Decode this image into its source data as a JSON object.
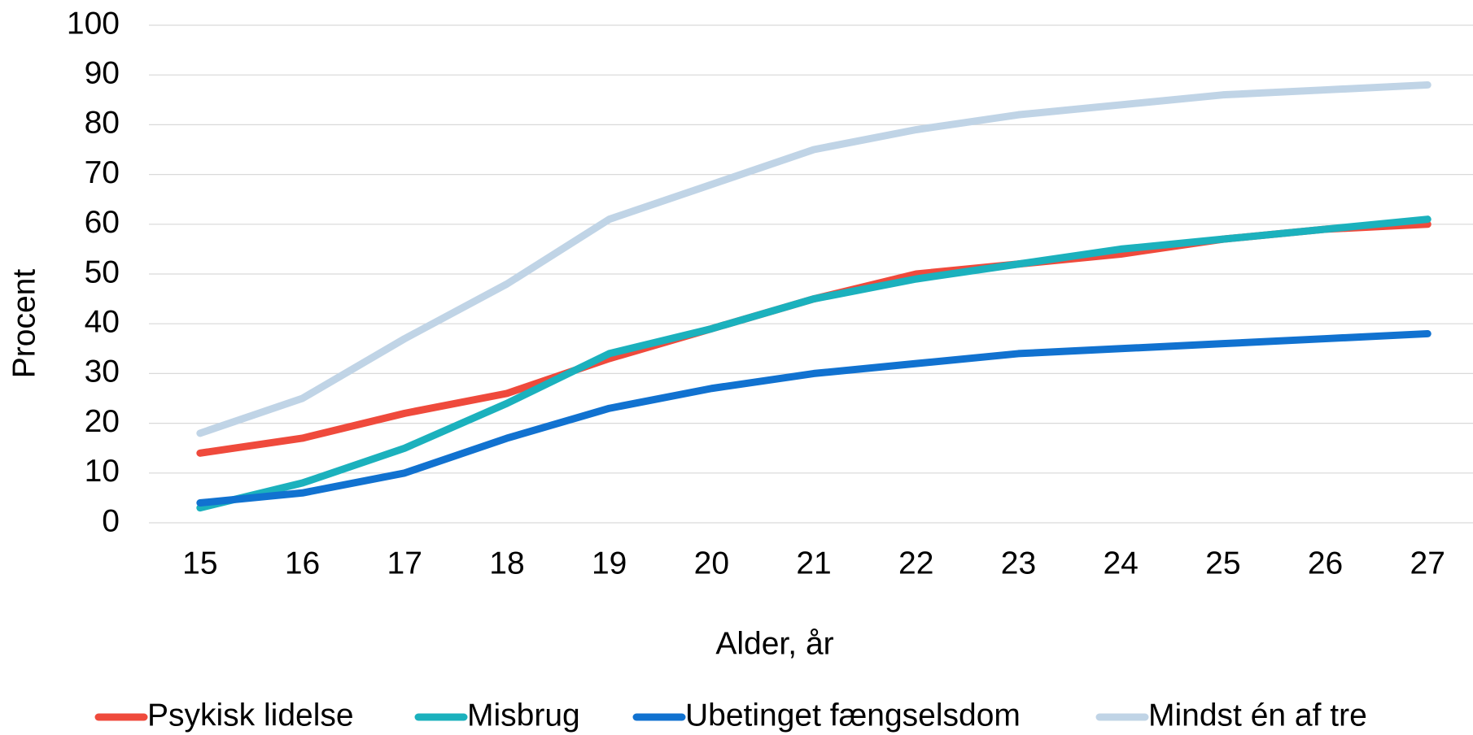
{
  "chart_data": {
    "type": "line",
    "x_label": "Alder, år",
    "y_label": "Procent",
    "categories": [
      "15",
      "16",
      "17",
      "18",
      "19",
      "20",
      "21",
      "22",
      "23",
      "24",
      "25",
      "26",
      "27"
    ],
    "series": [
      {
        "name": "Psykisk lidelse",
        "color": "#ef4a3c",
        "values": [
          14,
          17,
          22,
          26,
          33,
          39,
          45,
          50,
          52,
          54,
          57,
          59,
          60
        ]
      },
      {
        "name": "Misbrug",
        "color": "#1bb1bd",
        "values": [
          3,
          8,
          15,
          24,
          34,
          39,
          45,
          49,
          52,
          55,
          57,
          59,
          61
        ]
      },
      {
        "name": "Ubetinget fængselsdom",
        "color": "#1172d0",
        "values": [
          4,
          6,
          10,
          17,
          23,
          27,
          30,
          32,
          34,
          35,
          36,
          37,
          38
        ]
      },
      {
        "name": "Mindst én af tre",
        "color": "#c0d4e6",
        "values": [
          18,
          25,
          37,
          48,
          61,
          68,
          75,
          79,
          82,
          84,
          86,
          87,
          88
        ]
      }
    ],
    "ylim": [
      0,
      100
    ],
    "yticks": [
      0,
      10,
      20,
      30,
      40,
      50,
      60,
      70,
      80,
      90,
      100
    ],
    "grid": true,
    "legend": "bottom"
  }
}
